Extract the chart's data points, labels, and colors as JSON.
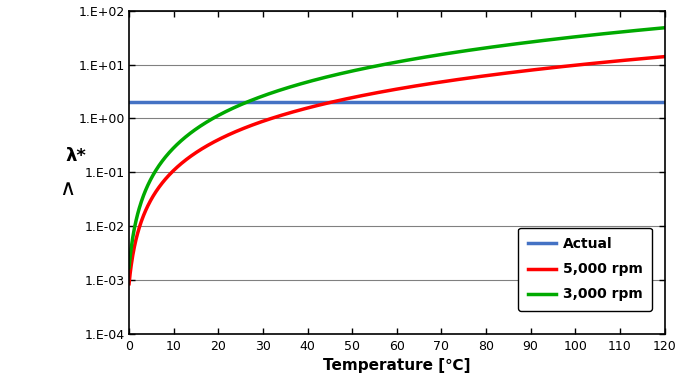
{
  "title": "",
  "xlabel": "Temperature [℃]",
  "ylabel": "λ*",
  "xlim": [
    0,
    120
  ],
  "ylim_log": [
    -4,
    2
  ],
  "actual_value": 2.0,
  "actual_color": "#4472C4",
  "rpm5000_color": "#FF0000",
  "rpm3000_color": "#00AA00",
  "actual_label": "Actual",
  "rpm5000_label": "5,000 rpm",
  "rpm3000_label": "3,000 rpm",
  "background_color": "#FFFFFF",
  "grid_color": "#808080",
  "temp_start": 0.5,
  "temp_end": 120,
  "rpm5000_start": 0.00085,
  "rpm5000_end": 14.0,
  "rpm3000_start": 0.0017,
  "rpm3000_end": 48.0,
  "rpm5000_power": 3.8,
  "rpm3000_power": 3.5,
  "xticks": [
    0,
    10,
    20,
    30,
    40,
    50,
    60,
    70,
    80,
    90,
    100,
    110,
    120
  ]
}
